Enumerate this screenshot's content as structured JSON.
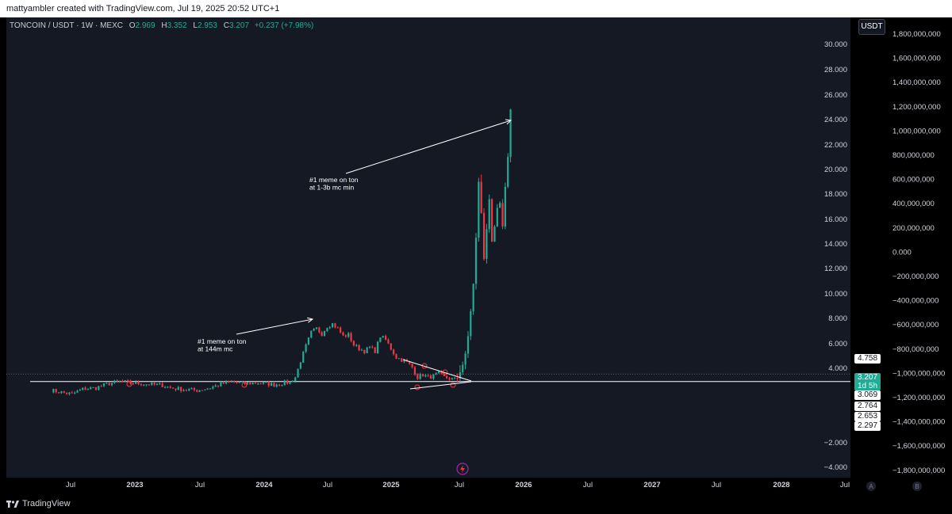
{
  "header": {
    "attribution": "mattyambler created with TradingView.com, Jul 19, 2025 20:52 UTC+1"
  },
  "legend": {
    "symbol": "TONCOIN / USDT · 1W · MEXC",
    "o_label": "O",
    "o_value": "2.969",
    "h_label": "H",
    "h_value": "3.352",
    "l_label": "L",
    "l_value": "2.953",
    "c_label": "C",
    "c_value": "3.207",
    "change": "+0.237 (+7.98%)"
  },
  "scale_button": "USDT",
  "footer": {
    "brand": "TradingView"
  },
  "colors": {
    "up": "#22ab94",
    "down": "#f23645",
    "bg": "#151924",
    "text": "#d1d4dc"
  },
  "icons": [
    "lightning-icon",
    "tradingview-logo-icon"
  ],
  "price_badges": [
    {
      "value": "4.758",
      "type": "white"
    },
    {
      "value": "3.207",
      "type": "green",
      "sub": "1d 5h"
    },
    {
      "value": "3.069",
      "type": "white"
    },
    {
      "value": "2.764",
      "type": "white"
    },
    {
      "value": "2.653",
      "type": "white"
    },
    {
      "value": "2.297",
      "type": "white"
    }
  ],
  "axis_corner_labels": [
    "A",
    "B"
  ],
  "chart_data": {
    "type": "candlestick",
    "title": "",
    "x_tick_labels": [
      "Jul",
      "2023",
      "Jul",
      "2024",
      "Jul",
      "2025",
      "Jul",
      "2026",
      "Jul",
      "2027",
      "Jul",
      "2028",
      "Jul"
    ],
    "y_left_ticks": [
      "30.000",
      "28.000",
      "26.000",
      "24.000",
      "22.000",
      "20.000",
      "18.000",
      "16.000",
      "14.000",
      "12.000",
      "10.000",
      "8.000",
      "6.000",
      "4.000",
      "−2.000",
      "−4.000"
    ],
    "y_right_ticks": [
      "1,800,000,000",
      "1,600,000,000",
      "1,400,000,000",
      "1,200,000,000",
      "1,000,000,000",
      "800,000,000",
      "600,000,000",
      "400,000,000",
      "200,000,000",
      "0.000",
      "−200,000,000",
      "−400,000,000",
      "−600,000,000",
      "−800,000,000",
      "−1,000,000,000",
      "−1,200,000,000",
      "−1,400,000,000",
      "−1,600,000,000",
      "−1,800,000,000"
    ],
    "ylim": [
      -4.5,
      31
    ],
    "support_level": 2.95,
    "dotted_level": 3.55,
    "annotations": [
      {
        "text": "#1 meme on ton",
        "text2": "at 144m mc"
      },
      {
        "text": "#1 meme on ton",
        "text2": "at 1-3b mc min"
      }
    ],
    "candles": {
      "history_anchor_prices": [
        [
          0,
          2.25
        ],
        [
          5,
          2.05
        ],
        [
          8,
          1.95
        ],
        [
          12,
          2.35
        ],
        [
          17,
          2.45
        ],
        [
          22,
          2.8
        ],
        [
          26,
          2.95
        ],
        [
          30,
          2.85
        ],
        [
          36,
          2.75
        ],
        [
          42,
          2.65
        ],
        [
          45,
          2.45
        ],
        [
          50,
          2.3
        ],
        [
          55,
          2.25
        ],
        [
          60,
          2.45
        ],
        [
          64,
          2.75
        ],
        [
          68,
          2.95
        ],
        [
          72,
          2.8
        ],
        [
          78,
          2.85
        ],
        [
          84,
          2.7
        ],
        [
          88,
          2.85
        ],
        [
          90,
          2.9
        ],
        [
          92,
          3.3
        ],
        [
          94,
          4.6
        ],
        [
          96,
          5.8
        ],
        [
          98,
          6.9
        ],
        [
          100,
          7.2
        ],
        [
          102,
          6.8
        ],
        [
          104,
          7.4
        ],
        [
          106,
          7.6
        ],
        [
          108,
          7.2
        ],
        [
          110,
          6.6
        ],
        [
          112,
          6.7
        ],
        [
          114,
          5.9
        ],
        [
          116,
          5.6
        ],
        [
          118,
          5.4
        ],
        [
          120,
          5.7
        ],
        [
          122,
          5.4
        ],
        [
          124,
          6.6
        ],
        [
          126,
          6.3
        ],
        [
          128,
          5.6
        ],
        [
          130,
          4.9
        ],
        [
          132,
          4.7
        ],
        [
          134,
          4.5
        ],
        [
          136,
          4.1
        ],
        [
          138,
          3.3
        ],
        [
          140,
          3.5
        ],
        [
          142,
          3.3
        ],
        [
          144,
          3.4
        ],
        [
          146,
          3.6
        ],
        [
          148,
          3.3
        ],
        [
          150,
          3.2
        ],
        [
          152,
          3.1
        ]
      ],
      "projection": [
        3.207,
        3.7,
        4.3,
        5.2,
        6.6,
        8.6,
        10.8,
        14.5,
        19.0,
        16.5,
        12.8,
        15.2,
        17.6,
        14.2,
        15.4,
        16.9,
        17.3,
        15.4,
        18.6,
        21.0,
        24.8
      ]
    }
  }
}
